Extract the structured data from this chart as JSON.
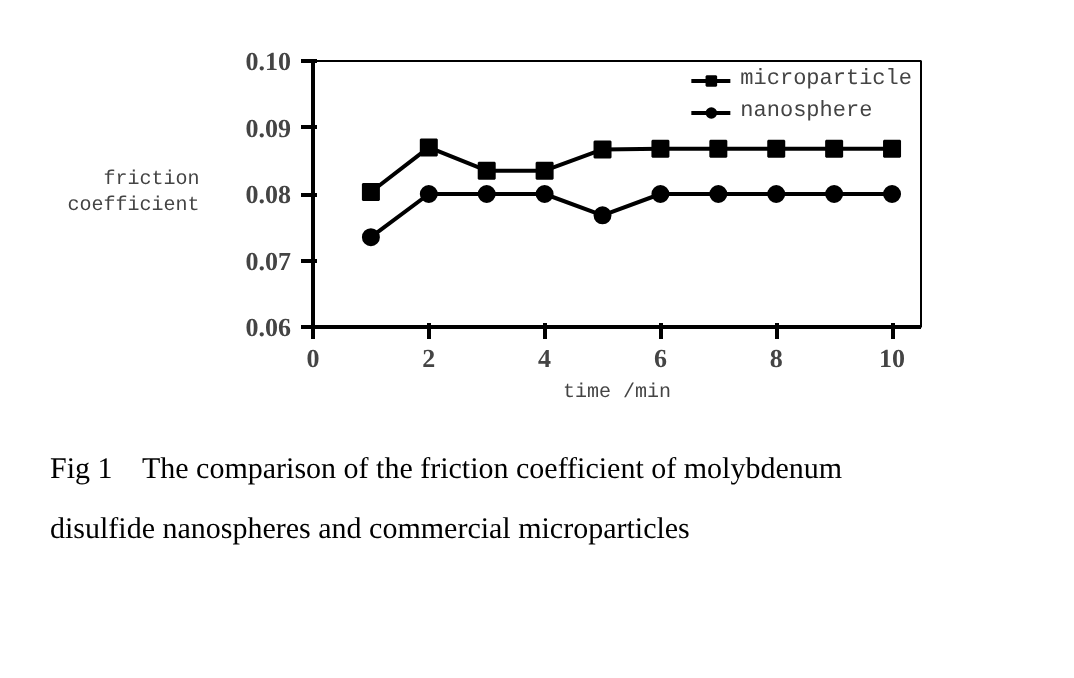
{
  "chart_data": {
    "type": "line",
    "xlabel": "time /min",
    "ylabel": "friction coefficient",
    "x": [
      1,
      2,
      3,
      4,
      5,
      6,
      7,
      8,
      9,
      10
    ],
    "series": [
      {
        "name": "microparticle",
        "color": "#000000",
        "marker": "square",
        "values": [
          0.0803,
          0.087,
          0.0835,
          0.0835,
          0.0867,
          0.0868,
          0.0868,
          0.0868,
          0.0868,
          0.0868
        ]
      },
      {
        "name": "nanosphere",
        "color": "#000000",
        "marker": "circle",
        "values": [
          0.0735,
          0.08,
          0.08,
          0.08,
          0.0768,
          0.08,
          0.08,
          0.08,
          0.08,
          0.08
        ]
      }
    ],
    "xlim": [
      0,
      10.5
    ],
    "xticks": [
      0,
      2,
      4,
      6,
      8,
      10
    ],
    "ylim": [
      0.06,
      0.1
    ],
    "yticks": [
      {
        "value": 0.06,
        "label": "0.06"
      },
      {
        "value": 0.07,
        "label": "0.07"
      },
      {
        "value": 0.08,
        "label": "0.08"
      },
      {
        "value": 0.09,
        "label": "0.09"
      },
      {
        "value": 0.1,
        "label": "0.10"
      }
    ],
    "grid": false,
    "legend": "top right",
    "line_style": "solid",
    "annotations": [
      "Fig 1    The comparison of the friction coefficient of molybdenum",
      "disulfide nanospheres and commercial microparticles"
    ]
  }
}
